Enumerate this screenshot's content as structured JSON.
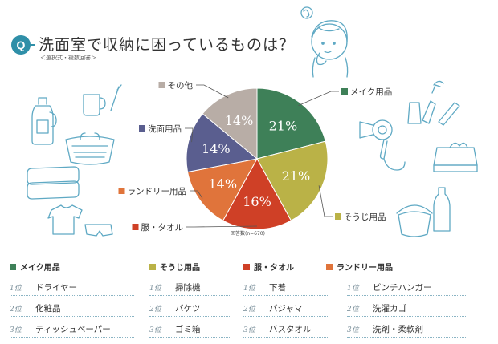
{
  "header": {
    "badge": "Q",
    "title": "洗面室で収納に困っているものは？",
    "subtitle": "＜選択式・複数回答＞"
  },
  "chart_data": {
    "type": "pie",
    "note": "回答数(n=670)",
    "slices": [
      {
        "name": "メイク用品",
        "value": 21,
        "label": "21%",
        "color": "#3e8058"
      },
      {
        "name": "そうじ用品",
        "value": 21,
        "label": "21%",
        "color": "#bab247"
      },
      {
        "name": "服・タオル",
        "value": 16,
        "label": "16%",
        "color": "#cf4026"
      },
      {
        "name": "ランドリー用品",
        "value": 14,
        "label": "14%",
        "color": "#e0743b"
      },
      {
        "name": "洗面用品",
        "value": 14,
        "label": "14%",
        "color": "#5a5e8f"
      },
      {
        "name": "その他",
        "value": 14,
        "label": "14%",
        "color": "#b8ada6"
      }
    ]
  },
  "ranking": {
    "columns": [
      {
        "title": "メイク用品",
        "color": "#3e8058",
        "items": [
          {
            "rank": "1位",
            "text": "ドライヤー"
          },
          {
            "rank": "2位",
            "text": "化粧品"
          },
          {
            "rank": "3位",
            "text": "ティッシュペーパー"
          }
        ]
      },
      {
        "title": "そうじ用品",
        "color": "#bab247",
        "items": [
          {
            "rank": "1位",
            "text": "掃除機"
          },
          {
            "rank": "2位",
            "text": "バケツ"
          },
          {
            "rank": "3位",
            "text": "ゴミ箱"
          }
        ]
      },
      {
        "title": "服・タオル",
        "color": "#cf4026",
        "items": [
          {
            "rank": "1位",
            "text": "下着"
          },
          {
            "rank": "2位",
            "text": "パジャマ"
          },
          {
            "rank": "3位",
            "text": "バスタオル"
          }
        ]
      },
      {
        "title": "ランドリー用品",
        "color": "#e0743b",
        "items": [
          {
            "rank": "1位",
            "text": "ピンチハンガー"
          },
          {
            "rank": "2位",
            "text": "洗濯カゴ"
          },
          {
            "rank": "3位",
            "text": "洗剤・柔軟剤"
          }
        ]
      }
    ]
  }
}
